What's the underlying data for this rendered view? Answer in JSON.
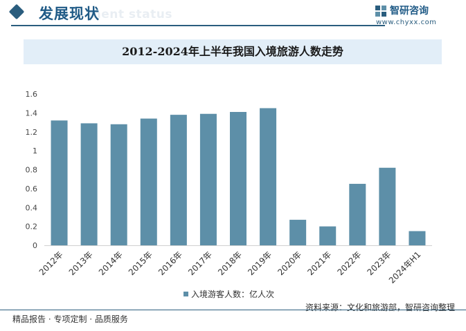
{
  "header": {
    "section_title": "发展现状",
    "section_en": "ment status",
    "brand_name": "智研咨询",
    "brand_url": "www.chyxx.com"
  },
  "colors": {
    "accent": "#2a5d7e",
    "bar": "#5d8fa8",
    "title_band": "#e2eef8"
  },
  "chart_data": {
    "type": "bar",
    "title": "2012-2024年上半年我国入境旅游人数走势",
    "categories": [
      "2012年",
      "2013年",
      "2014年",
      "2015年",
      "2016年",
      "2017年",
      "2018年",
      "2019年",
      "2020年",
      "2021年",
      "2022年",
      "2023年",
      "2024年H1"
    ],
    "series": [
      {
        "name": "入境游客人数：亿人次",
        "values": [
          1.32,
          1.29,
          1.28,
          1.34,
          1.38,
          1.39,
          1.41,
          1.45,
          0.27,
          0.2,
          0.65,
          0.82,
          0.15
        ]
      }
    ],
    "ylim": [
      0,
      1.6
    ],
    "yticks": [
      "0",
      "0.2",
      "0.4",
      "0.6",
      "0.8",
      "1",
      "1.2",
      "1.4",
      "1.6"
    ],
    "xlabel": "",
    "ylabel": "",
    "grid": false,
    "legend_position": "bottom"
  },
  "source": "资料来源：文化和旅游部，智研咨询整理",
  "footer": "精品报告 · 专项定制 · 品质服务"
}
